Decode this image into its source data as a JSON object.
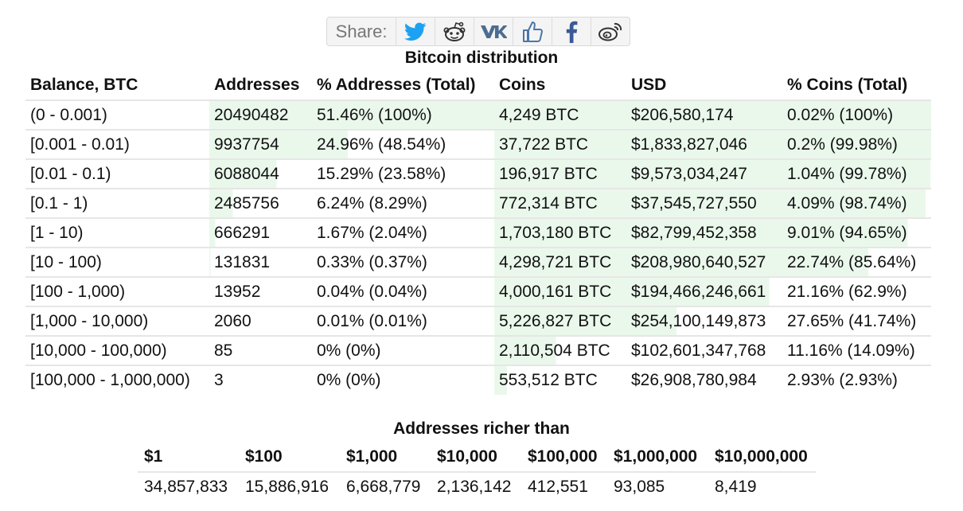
{
  "share": {
    "label": "Share:",
    "buttons": [
      {
        "name": "twitter-icon",
        "color": "#1da1f2"
      },
      {
        "name": "reddit-icon",
        "color": "#333333"
      },
      {
        "name": "vk-icon",
        "color": "#4c6c91"
      },
      {
        "name": "like-icon",
        "color": "#4a76a8"
      },
      {
        "name": "facebook-icon",
        "color": "#3b5998"
      },
      {
        "name": "weibo-icon",
        "color": "#333333"
      }
    ]
  },
  "distribution": {
    "caption": "Bitcoin distribution",
    "headers": [
      "Balance, BTC",
      "Addresses",
      "% Addresses (Total)",
      "Coins",
      "USD",
      "% Coins (Total)"
    ],
    "rows": [
      {
        "balance": "(0 - 0.001)",
        "addresses": "20490482",
        "pct_addresses": "51.46% (100%)",
        "coins": "4,249 BTC",
        "usd": "$206,580,174",
        "pct_coins": "0.02% (100%)",
        "addr_fill": 100,
        "coins_fill": 100
      },
      {
        "balance": "[0.001 - 0.01)",
        "addresses": "9937754",
        "pct_addresses": "24.96% (48.54%)",
        "coins": "37,722 BTC",
        "usd": "$1,833,827,046",
        "pct_coins": "0.2% (99.98%)",
        "addr_fill": 48.54,
        "coins_fill": 99.98
      },
      {
        "balance": "[0.01 - 0.1)",
        "addresses": "6088044",
        "pct_addresses": "15.29% (23.58%)",
        "coins": "196,917 BTC",
        "usd": "$9,573,034,247",
        "pct_coins": "1.04% (99.78%)",
        "addr_fill": 23.58,
        "coins_fill": 99.78
      },
      {
        "balance": "[0.1 - 1)",
        "addresses": "2485756",
        "pct_addresses": "6.24% (8.29%)",
        "coins": "772,314 BTC",
        "usd": "$37,545,727,550",
        "pct_coins": "4.09% (98.74%)",
        "addr_fill": 8.29,
        "coins_fill": 98.74
      },
      {
        "balance": "[1 - 10)",
        "addresses": "666291",
        "pct_addresses": "1.67% (2.04%)",
        "coins": "1,703,180 BTC",
        "usd": "$82,799,452,358",
        "pct_coins": "9.01% (94.65%)",
        "addr_fill": 2.04,
        "coins_fill": 94.65
      },
      {
        "balance": "[10 - 100)",
        "addresses": "131831",
        "pct_addresses": "0.33% (0.37%)",
        "coins": "4,298,721 BTC",
        "usd": "$208,980,640,527",
        "pct_coins": "22.74% (85.64%)",
        "addr_fill": 0.37,
        "coins_fill": 85.64
      },
      {
        "balance": "[100 - 1,000)",
        "addresses": "13952",
        "pct_addresses": "0.04% (0.04%)",
        "coins": "4,000,161 BTC",
        "usd": "$194,466,246,661",
        "pct_coins": "21.16% (62.9%)",
        "addr_fill": 0.04,
        "coins_fill": 62.9
      },
      {
        "balance": "[1,000 - 10,000)",
        "addresses": "2060",
        "pct_addresses": "0.01% (0.01%)",
        "coins": "5,226,827 BTC",
        "usd": "$254,100,149,873",
        "pct_coins": "27.65% (41.74%)",
        "addr_fill": 0.01,
        "coins_fill": 41.74
      },
      {
        "balance": "[10,000 - 100,000)",
        "addresses": "85",
        "pct_addresses": "0% (0%)",
        "coins": "2,110,504 BTC",
        "usd": "$102,601,347,768",
        "pct_coins": "11.16% (14.09%)",
        "addr_fill": 0,
        "coins_fill": 14.09
      },
      {
        "balance": "[100,000 - 1,000,000)",
        "addresses": "3",
        "pct_addresses": "0% (0%)",
        "coins": "553,512 BTC",
        "usd": "$26,908,780,984",
        "pct_coins": "2.93% (2.93%)",
        "addr_fill": 0,
        "coins_fill": 2.93
      }
    ]
  },
  "richer": {
    "caption": "Addresses richer than",
    "headers": [
      "$1",
      "$100",
      "$1,000",
      "$10,000",
      "$100,000",
      "$1,000,000",
      "$10,000,000"
    ],
    "values": [
      "34,857,833",
      "15,886,916",
      "6,668,779",
      "2,136,142",
      "412,551",
      "93,085",
      "8,419"
    ]
  },
  "colors": {
    "fill": "#eaf8ec",
    "border": "#e6e6e6"
  }
}
